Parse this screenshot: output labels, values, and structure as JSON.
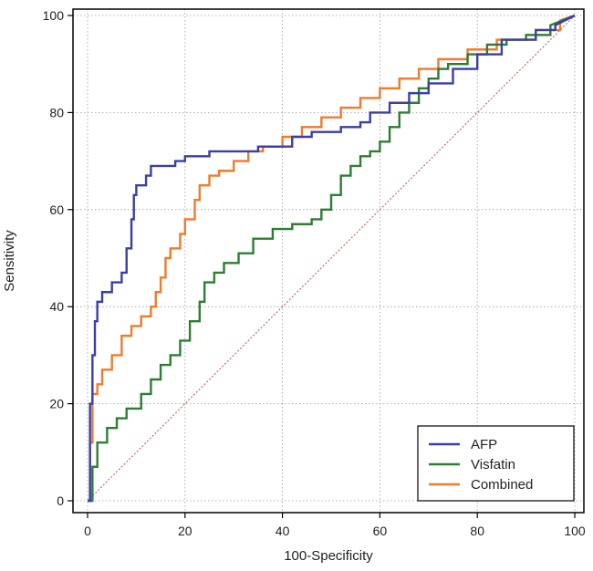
{
  "chart_data": {
    "type": "line",
    "title": "",
    "xlabel": "100-Specificity",
    "ylabel": "Sensitivity",
    "xlim": [
      0,
      100
    ],
    "ylim": [
      0,
      100
    ],
    "xticks": [
      0,
      20,
      40,
      60,
      80,
      100
    ],
    "yticks": [
      0,
      20,
      40,
      60,
      80,
      100
    ],
    "grid": true,
    "legend_position": "bottom-right",
    "reference_line": {
      "name": "chance",
      "x": [
        0,
        100
      ],
      "y": [
        0,
        100
      ],
      "color": "#c0504d"
    },
    "series": [
      {
        "name": "AFP",
        "color": "#3a3ea8",
        "x": [
          0,
          0.5,
          0.5,
          1,
          1,
          1.5,
          1.5,
          2,
          2,
          3,
          3,
          5,
          5,
          7,
          7,
          8,
          8,
          9,
          9,
          9.5,
          9.5,
          10,
          10,
          12,
          12,
          13,
          13,
          18,
          18,
          20,
          20,
          25,
          25,
          35,
          35,
          42,
          42,
          46,
          46,
          52,
          52,
          56,
          56,
          58,
          58,
          62,
          62,
          66,
          66,
          70,
          70,
          75,
          75,
          80,
          80,
          85,
          85,
          92,
          92,
          96,
          96,
          100
        ],
        "y": [
          0,
          0,
          20,
          20,
          30,
          30,
          37,
          37,
          41,
          41,
          43,
          43,
          45,
          45,
          47,
          47,
          52,
          52,
          58,
          58,
          63,
          63,
          65,
          65,
          67,
          67,
          69,
          69,
          70,
          70,
          71,
          71,
          72,
          72,
          73,
          73,
          75,
          75,
          76,
          76,
          77,
          77,
          78,
          78,
          80,
          80,
          82,
          82,
          84,
          84,
          86,
          86,
          89,
          89,
          92,
          92,
          95,
          95,
          97,
          97,
          98,
          100
        ]
      },
      {
        "name": "Visfatin",
        "color": "#2e7d32",
        "x": [
          0,
          1,
          1,
          2,
          2,
          4,
          4,
          6,
          6,
          8,
          8,
          11,
          11,
          13,
          13,
          15,
          15,
          17,
          17,
          19,
          19,
          21,
          21,
          23,
          23,
          24,
          24,
          26,
          26,
          28,
          28,
          31,
          31,
          34,
          34,
          38,
          38,
          42,
          42,
          46,
          46,
          48,
          48,
          50,
          50,
          52,
          52,
          54,
          54,
          56,
          56,
          58,
          58,
          60,
          60,
          62,
          62,
          64,
          64,
          66,
          66,
          68,
          68,
          70,
          70,
          72,
          72,
          74,
          74,
          78,
          78,
          82,
          82,
          86,
          86,
          90,
          90,
          95,
          95,
          100
        ],
        "y": [
          0,
          0,
          7,
          7,
          12,
          12,
          15,
          15,
          17,
          17,
          19,
          19,
          22,
          22,
          25,
          25,
          28,
          28,
          30,
          30,
          33,
          33,
          37,
          37,
          41,
          41,
          45,
          45,
          47,
          47,
          49,
          49,
          51,
          51,
          54,
          54,
          56,
          56,
          57,
          57,
          58,
          58,
          60,
          60,
          63,
          63,
          67,
          67,
          69,
          69,
          71,
          71,
          72,
          72,
          74,
          74,
          77,
          77,
          80,
          80,
          82,
          82,
          85,
          85,
          87,
          87,
          89,
          89,
          90,
          90,
          92,
          92,
          94,
          94,
          95,
          95,
          96,
          96,
          98,
          100
        ]
      },
      {
        "name": "Combined",
        "color": "#f07b2a",
        "x": [
          0,
          0.5,
          0.5,
          1,
          1,
          2,
          2,
          3,
          3,
          5,
          5,
          7,
          7,
          9,
          9,
          11,
          11,
          13,
          13,
          14,
          14,
          15,
          15,
          16,
          16,
          17,
          17,
          19,
          19,
          20,
          20,
          22,
          22,
          23,
          23,
          25,
          25,
          27,
          27,
          30,
          30,
          33,
          33,
          36,
          36,
          40,
          40,
          44,
          44,
          48,
          48,
          52,
          52,
          56,
          56,
          60,
          60,
          64,
          64,
          68,
          68,
          72,
          72,
          78,
          78,
          84,
          84,
          92,
          92,
          97,
          97,
          100
        ],
        "y": [
          0,
          0,
          12,
          12,
          22,
          22,
          24,
          24,
          27,
          27,
          30,
          30,
          34,
          34,
          36,
          36,
          38,
          38,
          40,
          40,
          43,
          43,
          46,
          46,
          50,
          50,
          52,
          52,
          55,
          55,
          58,
          58,
          62,
          62,
          65,
          65,
          67,
          67,
          68,
          68,
          70,
          70,
          72,
          72,
          73,
          73,
          75,
          75,
          77,
          77,
          79,
          79,
          81,
          81,
          83,
          83,
          85,
          85,
          87,
          87,
          89,
          89,
          91,
          91,
          93,
          93,
          95,
          95,
          97,
          97,
          99,
          100
        ]
      }
    ]
  }
}
